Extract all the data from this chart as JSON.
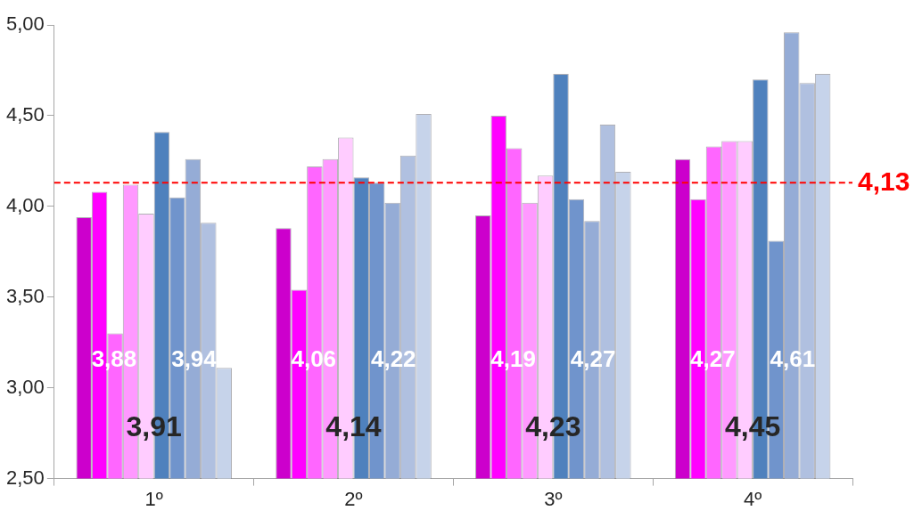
{
  "chart_data": {
    "type": "bar",
    "categories": [
      "1º",
      "2º",
      "3º",
      "4º"
    ],
    "series": [
      {
        "color": "#cc00cc",
        "values": [
          3.94,
          3.88,
          3.95,
          4.26
        ]
      },
      {
        "color": "#ff00ff",
        "values": [
          4.08,
          3.54,
          4.5,
          4.04
        ]
      },
      {
        "color": "#ff66ff",
        "values": [
          3.3,
          4.22,
          4.32,
          4.33
        ]
      },
      {
        "color": "#ff99ff",
        "values": [
          4.12,
          4.26,
          4.02,
          4.36
        ]
      },
      {
        "color": "#ffccff",
        "values": [
          3.96,
          4.38,
          4.17,
          4.36
        ]
      },
      {
        "color": "#4f81bd",
        "values": [
          4.41,
          4.16,
          4.73,
          4.7
        ]
      },
      {
        "color": "#7094cc",
        "values": [
          4.05,
          4.13,
          4.04,
          3.81
        ]
      },
      {
        "color": "#95acd6",
        "values": [
          4.26,
          4.02,
          3.92,
          4.96
        ]
      },
      {
        "color": "#b0c0e0",
        "values": [
          3.91,
          4.28,
          4.45,
          4.68
        ]
      },
      {
        "color": "#c6d3ea",
        "values": [
          3.11,
          4.51,
          4.19,
          4.73
        ]
      }
    ],
    "ylim": [
      2.5,
      5.0
    ],
    "yticks": [
      {
        "value": 2.5,
        "label": "2,50"
      },
      {
        "value": 3.0,
        "label": "3,00"
      },
      {
        "value": 3.5,
        "label": "3,50"
      },
      {
        "value": 4.0,
        "label": "4,00"
      },
      {
        "value": 4.5,
        "label": "4,50"
      },
      {
        "value": 5.0,
        "label": "5,00"
      }
    ],
    "ref_lines": [
      {
        "axis": "y",
        "value": 4.13,
        "label": "4,13",
        "color": "#ff0000",
        "line_style": "dashed"
      }
    ],
    "annotations": [
      "3,88",
      "3,94",
      "3,91",
      "4,06",
      "4,22",
      "4,14",
      "4,19",
      "4,27",
      "4,23",
      "4,27",
      "4,61",
      "4,45"
    ]
  }
}
